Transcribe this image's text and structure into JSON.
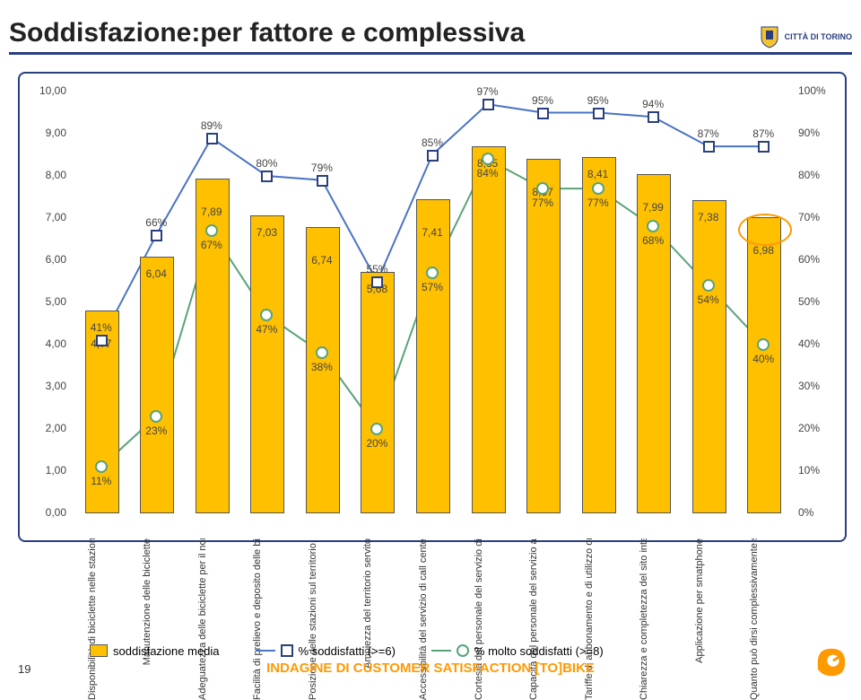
{
  "title": "Soddisfazione:per fattore e complessiva",
  "logo_text": "CITTÀ DI TORINO",
  "page_number": "19",
  "footer_text": "INDAGINE DI CUSTOMER SATISFACTION [TO]BIKE",
  "legend": {
    "bars": "soddisfazione media",
    "blue": "% soddisfatti (>=6)",
    "green": "% molto soddisfatti (>=8)"
  },
  "colors": {
    "bar": "#ffc000",
    "bar_border": "#555555",
    "blue_line": "#4a74c4",
    "blue_marker_border": "#2a3f7f",
    "green_line": "#5aa378",
    "border": "#2a3f7f",
    "accent": "#ff9900"
  },
  "left_axis": {
    "min": 0,
    "max": 10,
    "step": 1,
    "format": "n,00"
  },
  "right_axis": {
    "min": 0,
    "max": 100,
    "step": 10,
    "suffix": "%"
  },
  "categories": [
    "Disponibilità di biciclette nelle stazioni",
    "Manutenzione delle biciclette",
    "Adeguatezza delle biciclette per il normale utilizzo",
    "Facilità di prelievo e deposito delle biciclette",
    "Posizione delle stazioni sul territorio, rispetto agli altri mezzi di…",
    "Ampiezza del territorio servito",
    "Accessibilità del servizio di call center (orari, facilità di contatto,…)",
    "Cortesia del personale del servizio di call center",
    "Capacità del personale del servizio assistenza clienti di prendere in carico le…",
    "Tariffe di abbonamento e di utilizzo orario",
    "Chiarezza e completezza del sito internet (http://www.tobike.it)",
    "Applicazione per smatphone",
    "Quanto può dirsi complessivamente soddisfatto?"
  ],
  "bars": [
    4.77,
    6.04,
    7.89,
    7.03,
    6.74,
    5.68,
    7.41,
    8.65,
    8.37,
    8.41,
    7.99,
    7.38,
    6.98
  ],
  "bar_labels": [
    "4,77",
    "6,04",
    "7,89",
    "7,03",
    "6,74",
    "5,68",
    "7,41",
    "8,65",
    "8,37",
    "8,41",
    "7,99",
    "7,38",
    "6,98"
  ],
  "blue_pct": [
    41,
    66,
    89,
    80,
    79,
    55,
    85,
    97,
    95,
    95,
    94,
    87,
    87
  ],
  "green_pct": [
    11,
    23,
    67,
    47,
    38,
    20,
    57,
    84,
    77,
    77,
    68,
    54,
    40
  ],
  "highlight_column": 12
}
